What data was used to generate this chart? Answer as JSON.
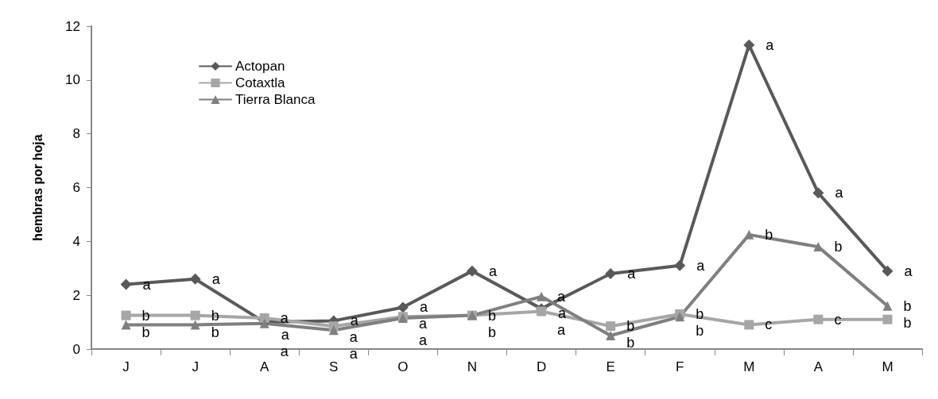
{
  "chart_data": {
    "type": "line",
    "ylabel": "hembras por hoja",
    "categories": [
      "J",
      "J",
      "A",
      "S",
      "O",
      "N",
      "D",
      "E",
      "F",
      "M",
      "A",
      "M"
    ],
    "series": [
      {
        "name": "Actopan",
        "color": "#595959",
        "marker": "diamond",
        "values": [
          2.4,
          2.6,
          1.0,
          1.05,
          1.55,
          2.9,
          1.5,
          2.8,
          3.1,
          11.3,
          5.8,
          2.9
        ],
        "value_labels": [
          "a",
          "a",
          "a",
          "a",
          "a",
          "a",
          "a",
          "a",
          "a",
          "a",
          "a",
          "a"
        ]
      },
      {
        "name": "Cotaxtla",
        "color": "#a6a6a6",
        "marker": "square",
        "values": [
          1.25,
          1.25,
          1.15,
          0.85,
          1.2,
          1.25,
          1.4,
          0.85,
          1.3,
          0.9,
          1.1,
          1.1
        ],
        "value_labels": [
          "b",
          "b",
          "a",
          "a",
          "a",
          "b",
          "a",
          "b",
          "b",
          "c",
          "c",
          "b"
        ]
      },
      {
        "name": "Tierra Blanca",
        "color": "#7f7f7f",
        "marker": "triangle",
        "values": [
          0.9,
          0.9,
          0.95,
          0.7,
          1.15,
          1.25,
          1.95,
          0.5,
          1.2,
          4.25,
          3.8,
          1.6
        ],
        "value_labels": [
          "b",
          "b",
          "a",
          "a",
          "a",
          "b",
          "a",
          "b",
          "b",
          "b",
          "b",
          "b"
        ]
      }
    ],
    "ylim": [
      0,
      12
    ],
    "yticks": [
      0,
      2,
      4,
      6,
      8,
      10,
      12
    ],
    "grid": false,
    "legend": "top left",
    "line_style": "solid"
  }
}
